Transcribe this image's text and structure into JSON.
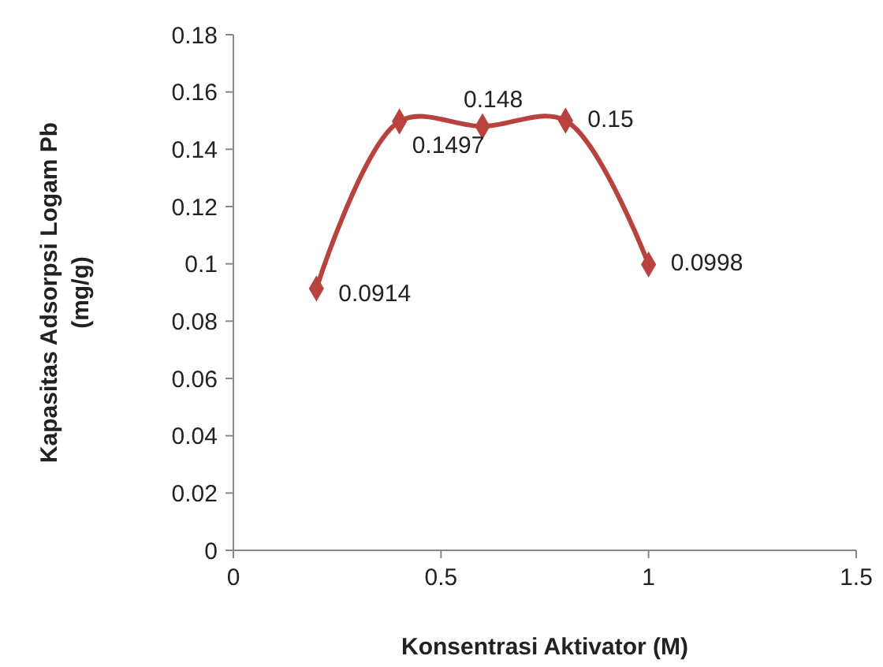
{
  "chart_data": {
    "type": "line",
    "xlabel": "Konsentrasi Aktivator (M)",
    "ylabel": "Kapasitas Adsorpsi Logam Pb (mg/g)",
    "x": [
      0.2,
      0.4,
      0.6,
      0.8,
      1
    ],
    "series": [
      {
        "color": "#b8433e",
        "values": [
          0.0914,
          0.1497,
          0.148,
          0.15,
          0.0998
        ]
      }
    ],
    "xlim": [
      0,
      1.5
    ],
    "xticks": [
      0,
      0.5,
      1,
      1.5
    ],
    "ylim": [
      0,
      0.18
    ],
    "yticks": [
      0,
      0.02,
      0.04,
      0.06,
      0.08,
      0.1,
      0.12,
      0.14,
      0.16,
      0.18
    ],
    "marker": "diamond",
    "data_labels": true
  }
}
